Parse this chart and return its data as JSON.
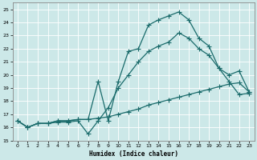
{
  "xlabel": "Humidex (Indice chaleur)",
  "bg_color": "#cce8e8",
  "grid_color": "#ffffff",
  "line_color": "#1a6b6b",
  "xlim": [
    -0.5,
    23.5
  ],
  "ylim": [
    15,
    25.5
  ],
  "xticks": [
    0,
    1,
    2,
    3,
    4,
    5,
    6,
    7,
    8,
    9,
    10,
    11,
    12,
    13,
    14,
    15,
    16,
    17,
    18,
    19,
    20,
    21,
    22,
    23
  ],
  "yticks": [
    15,
    16,
    17,
    18,
    19,
    20,
    21,
    22,
    23,
    24,
    25
  ],
  "line1_x": [
    0,
    1,
    2,
    3,
    4,
    5,
    6,
    7,
    8,
    9,
    10,
    11,
    12,
    13,
    14,
    15,
    16,
    17,
    18,
    19,
    20,
    21,
    22,
    23
  ],
  "line1_y": [
    16.5,
    16.0,
    16.3,
    16.3,
    16.5,
    16.5,
    16.6,
    16.6,
    19.5,
    16.5,
    19.5,
    21.8,
    22.0,
    23.8,
    24.2,
    24.5,
    24.8,
    24.2,
    22.8,
    22.2,
    20.5,
    19.5,
    18.5,
    18.6
  ],
  "line2_x": [
    0,
    1,
    2,
    3,
    4,
    5,
    6,
    7,
    8,
    9,
    10,
    11,
    12,
    13,
    14,
    15,
    16,
    17,
    18,
    19,
    20,
    21,
    22,
    23
  ],
  "line2_y": [
    16.5,
    16.0,
    16.3,
    16.3,
    16.4,
    16.4,
    16.5,
    15.5,
    16.5,
    17.5,
    19.0,
    20.0,
    21.0,
    21.8,
    22.2,
    22.5,
    23.2,
    22.8,
    22.0,
    21.5,
    20.5,
    20.0,
    20.3,
    18.7
  ],
  "line3_x": [
    0,
    1,
    2,
    3,
    4,
    5,
    6,
    7,
    8,
    9,
    10,
    11,
    12,
    13,
    14,
    15,
    16,
    17,
    18,
    19,
    20,
    21,
    22,
    23
  ],
  "line3_y": [
    16.5,
    16.0,
    16.3,
    16.3,
    16.5,
    16.5,
    16.6,
    16.6,
    16.7,
    16.8,
    17.0,
    17.2,
    17.4,
    17.7,
    17.9,
    18.1,
    18.3,
    18.5,
    18.7,
    18.9,
    19.1,
    19.3,
    19.4,
    18.7
  ]
}
